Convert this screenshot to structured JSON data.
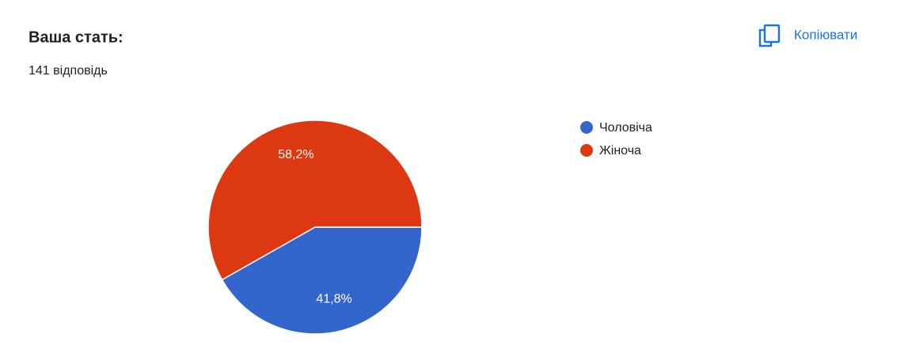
{
  "chart_data": {
    "type": "pie",
    "title": "Ваша стать:",
    "subtitle": "141 відповідь",
    "copy_button": "Копіювати",
    "categories": [
      "Чоловіча",
      "Жіноча"
    ],
    "values": [
      41.8,
      58.2
    ],
    "value_labels": [
      "41,8%",
      "58,2%"
    ],
    "colors": [
      "#3366cc",
      "#dc3912"
    ],
    "legend": "right"
  }
}
